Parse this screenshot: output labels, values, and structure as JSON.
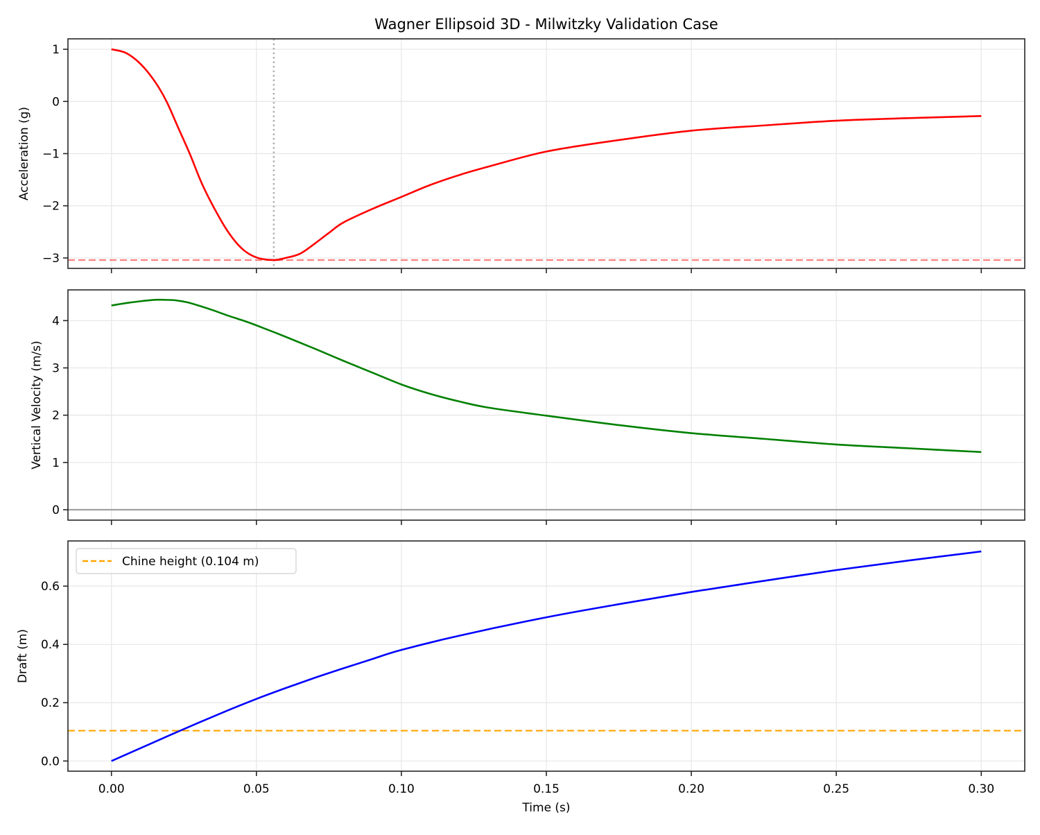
{
  "chart_data": {
    "type": "line",
    "title": "Wagner Ellipsoid 3D - Milwitzky Validation Case",
    "xlabel": "Time (s)",
    "shared_x": true,
    "xlim": [
      -0.015,
      0.315
    ],
    "xticks": [
      0.0,
      0.05,
      0.1,
      0.15,
      0.2,
      0.25,
      0.3
    ],
    "xtick_labels": [
      "0.00",
      "0.05",
      "0.10",
      "0.15",
      "0.20",
      "0.25",
      "0.30"
    ],
    "grid": true,
    "panels": [
      {
        "name": "acceleration",
        "ylabel": "Acceleration (g)",
        "ylim": [
          -3.2,
          1.2
        ],
        "yticks": [
          1,
          0,
          -1,
          -2,
          -3
        ],
        "ytick_labels": [
          "1",
          "0",
          "−1",
          "−2",
          "−3"
        ],
        "series": [
          {
            "name": "Acceleration",
            "color": "#ff0000",
            "x": [
              0.0,
              0.005,
              0.01,
              0.015,
              0.019,
              0.023,
              0.027,
              0.031,
              0.035,
              0.04,
              0.045,
              0.05,
              0.056,
              0.06,
              0.065,
              0.07,
              0.075,
              0.08,
              0.09,
              0.1,
              0.11,
              0.12,
              0.13,
              0.15,
              0.175,
              0.2,
              0.225,
              0.25,
              0.275,
              0.3
            ],
            "y": [
              1.0,
              0.93,
              0.72,
              0.38,
              0.0,
              -0.5,
              -1.0,
              -1.55,
              -2.0,
              -2.48,
              -2.82,
              -2.99,
              -3.04,
              -3.0,
              -2.92,
              -2.73,
              -2.52,
              -2.32,
              -2.06,
              -1.83,
              -1.6,
              -1.41,
              -1.25,
              -0.96,
              -0.74,
              -0.56,
              -0.46,
              -0.37,
              -0.32,
              -0.28
            ]
          }
        ],
        "reference_lines": [
          {
            "orientation": "horizontal",
            "value": -3.04,
            "style": "dashed",
            "color": "#ff8080",
            "label": "Peak acceleration"
          },
          {
            "orientation": "vertical",
            "value": 0.056,
            "style": "dotted",
            "color": "#b0b0b0",
            "label": "Peak time"
          }
        ]
      },
      {
        "name": "velocity",
        "ylabel": "Vertical Velocity (m/s)",
        "ylim": [
          -0.22,
          4.65
        ],
        "yticks": [
          0,
          1,
          2,
          3,
          4
        ],
        "ytick_labels": [
          "0",
          "1",
          "2",
          "3",
          "4"
        ],
        "series": [
          {
            "name": "Vertical Velocity",
            "color": "#008000",
            "x": [
              0.0,
              0.005,
              0.01,
              0.015,
              0.018,
              0.022,
              0.026,
              0.03,
              0.035,
              0.04,
              0.045,
              0.05,
              0.06,
              0.07,
              0.08,
              0.09,
              0.1,
              0.11,
              0.12,
              0.13,
              0.15,
              0.175,
              0.2,
              0.225,
              0.25,
              0.275,
              0.3
            ],
            "y": [
              4.32,
              4.37,
              4.41,
              4.44,
              4.44,
              4.43,
              4.39,
              4.32,
              4.22,
              4.11,
              4.01,
              3.9,
              3.66,
              3.41,
              3.15,
              2.9,
              2.65,
              2.45,
              2.29,
              2.16,
              1.99,
              1.79,
              1.62,
              1.5,
              1.38,
              1.3,
              1.22
            ]
          }
        ],
        "reference_lines": [
          {
            "orientation": "horizontal",
            "value": 0,
            "style": "solid",
            "color": "#a0a0a0",
            "label": "Zero velocity"
          }
        ]
      },
      {
        "name": "draft",
        "ylabel": "Draft (m)",
        "ylim": [
          -0.035,
          0.755
        ],
        "yticks": [
          0.0,
          0.2,
          0.4,
          0.6
        ],
        "ytick_labels": [
          "0.0",
          "0.2",
          "0.4",
          "0.6"
        ],
        "series": [
          {
            "name": "Draft",
            "color": "#0000ff",
            "x": [
              0.0,
              0.01,
              0.02,
              0.03,
              0.04,
              0.05,
              0.06,
              0.07,
              0.08,
              0.09,
              0.1,
              0.12,
              0.15,
              0.175,
              0.2,
              0.225,
              0.25,
              0.275,
              0.3
            ],
            "y": [
              0.0,
              0.044,
              0.088,
              0.131,
              0.173,
              0.213,
              0.25,
              0.285,
              0.318,
              0.35,
              0.381,
              0.43,
              0.493,
              0.538,
              0.58,
              0.618,
              0.655,
              0.688,
              0.719
            ]
          }
        ],
        "reference_lines": [
          {
            "orientation": "horizontal",
            "value": 0.104,
            "style": "dashed",
            "color": "#ffa500",
            "label": "Chine height (0.104 m)"
          }
        ],
        "legend": {
          "position": "upper left",
          "entries": [
            {
              "label": "Chine height (0.104 m)",
              "color": "#ffa500",
              "style": "dashed"
            }
          ]
        }
      }
    ]
  },
  "figure": {
    "title": "Wagner Ellipsoid 3D - Milwitzky Validation Case",
    "xlabel": "Time (s)",
    "panels": [
      {
        "ylabel": "Acceleration (g)"
      },
      {
        "ylabel": "Vertical Velocity (m/s)"
      },
      {
        "ylabel": "Draft (m)",
        "legend_label": "Chine height (0.104 m)"
      }
    ]
  }
}
